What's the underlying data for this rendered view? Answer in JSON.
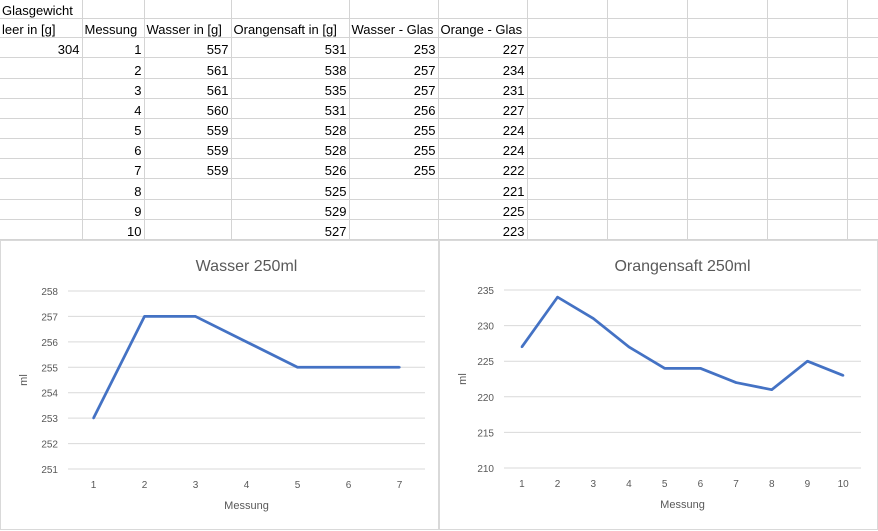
{
  "sheet": {
    "header_row1": [
      "Glasgewicht",
      "",
      "",
      "",
      "",
      ""
    ],
    "header_row2": [
      "leer in [g]",
      "Messung",
      "Wasser in [g]",
      "Orangensaft in [g]",
      "Wasser - Glas",
      "Orange - Glas"
    ],
    "rows": [
      [
        "304",
        "1",
        "557",
        "531",
        "253",
        "227"
      ],
      [
        "",
        "2",
        "561",
        "538",
        "257",
        "234"
      ],
      [
        "",
        "3",
        "561",
        "535",
        "257",
        "231"
      ],
      [
        "",
        "4",
        "560",
        "531",
        "256",
        "227"
      ],
      [
        "",
        "5",
        "559",
        "528",
        "255",
        "224"
      ],
      [
        "",
        "6",
        "559",
        "528",
        "255",
        "224"
      ],
      [
        "",
        "7",
        "559",
        "526",
        "255",
        "222"
      ],
      [
        "",
        "8",
        "",
        "525",
        "",
        "221"
      ],
      [
        "",
        "9",
        "",
        "529",
        "",
        "225"
      ],
      [
        "",
        "10",
        "",
        "527",
        "",
        "223"
      ]
    ]
  },
  "colors": {
    "line": "#4472c4",
    "gridline": "#d9d9d9",
    "axis_text": "#595959",
    "title_text": "#595959"
  },
  "chart_data": [
    {
      "type": "line",
      "title": "Wasser 250ml",
      "xlabel": "Messung",
      "ylabel": "ml",
      "categories": [
        "1",
        "2",
        "3",
        "4",
        "5",
        "6",
        "7"
      ],
      "series": [
        {
          "values": [
            253,
            257,
            257,
            256,
            255,
            255,
            255
          ]
        }
      ],
      "ylim": [
        251,
        258
      ],
      "yticks": [
        251,
        252,
        253,
        254,
        255,
        256,
        257,
        258
      ],
      "grid": true
    },
    {
      "type": "line",
      "title": "Orangensaft 250ml",
      "xlabel": "Messung",
      "ylabel": "ml",
      "categories": [
        "1",
        "2",
        "3",
        "4",
        "5",
        "6",
        "7",
        "8",
        "9",
        "10"
      ],
      "series": [
        {
          "values": [
            227,
            234,
            231,
            227,
            224,
            224,
            222,
            221,
            225,
            223
          ]
        }
      ],
      "ylim": [
        210,
        235
      ],
      "yticks": [
        210,
        215,
        220,
        225,
        230,
        235
      ],
      "grid": true
    }
  ]
}
